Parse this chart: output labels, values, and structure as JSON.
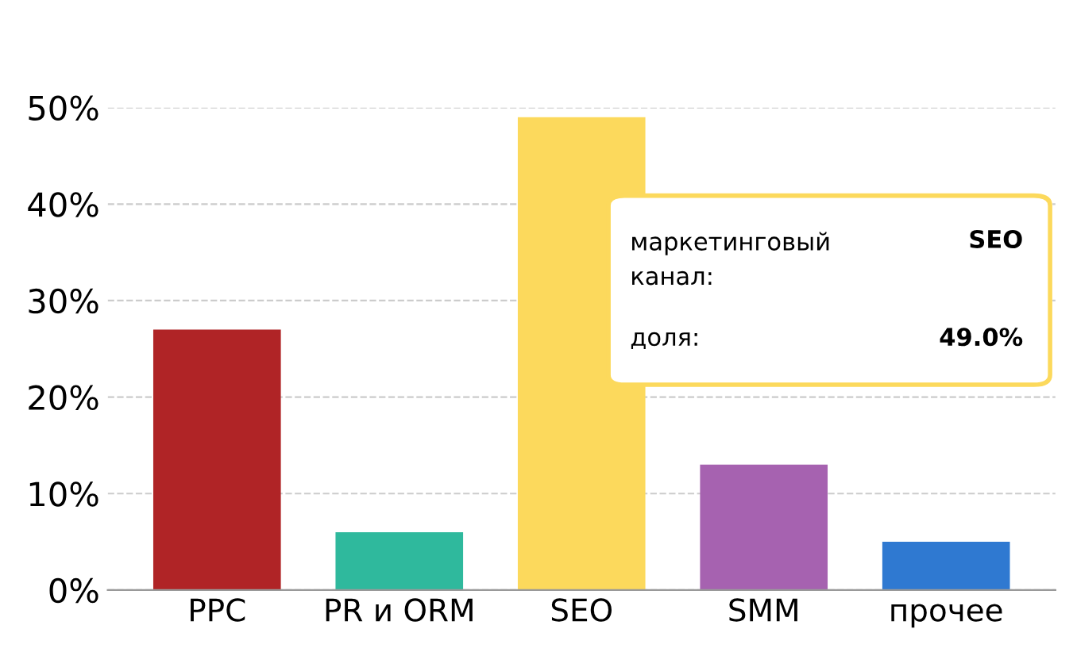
{
  "chart_data": {
    "type": "bar",
    "categories": [
      "PPC",
      "PR и ORM",
      "SEO",
      "SMM",
      "прочее"
    ],
    "values": [
      27,
      6,
      49,
      13,
      5
    ],
    "colors": [
      "#b02426",
      "#2fb99d",
      "#fcd95c",
      "#a662b0",
      "#2f79d1"
    ],
    "ylim": [
      0,
      50
    ],
    "yticks": [
      {
        "value": 0,
        "label": "0%"
      },
      {
        "value": 10,
        "label": "10%"
      },
      {
        "value": 20,
        "label": "20%"
      },
      {
        "value": 30,
        "label": "30%"
      },
      {
        "value": 40,
        "label": "40%"
      },
      {
        "value": 50,
        "label": "50%"
      }
    ],
    "grid": "y",
    "annotations": [
      "маркетинговый\nканал:",
      "SEO",
      "доля:",
      "49.0%"
    ]
  }
}
